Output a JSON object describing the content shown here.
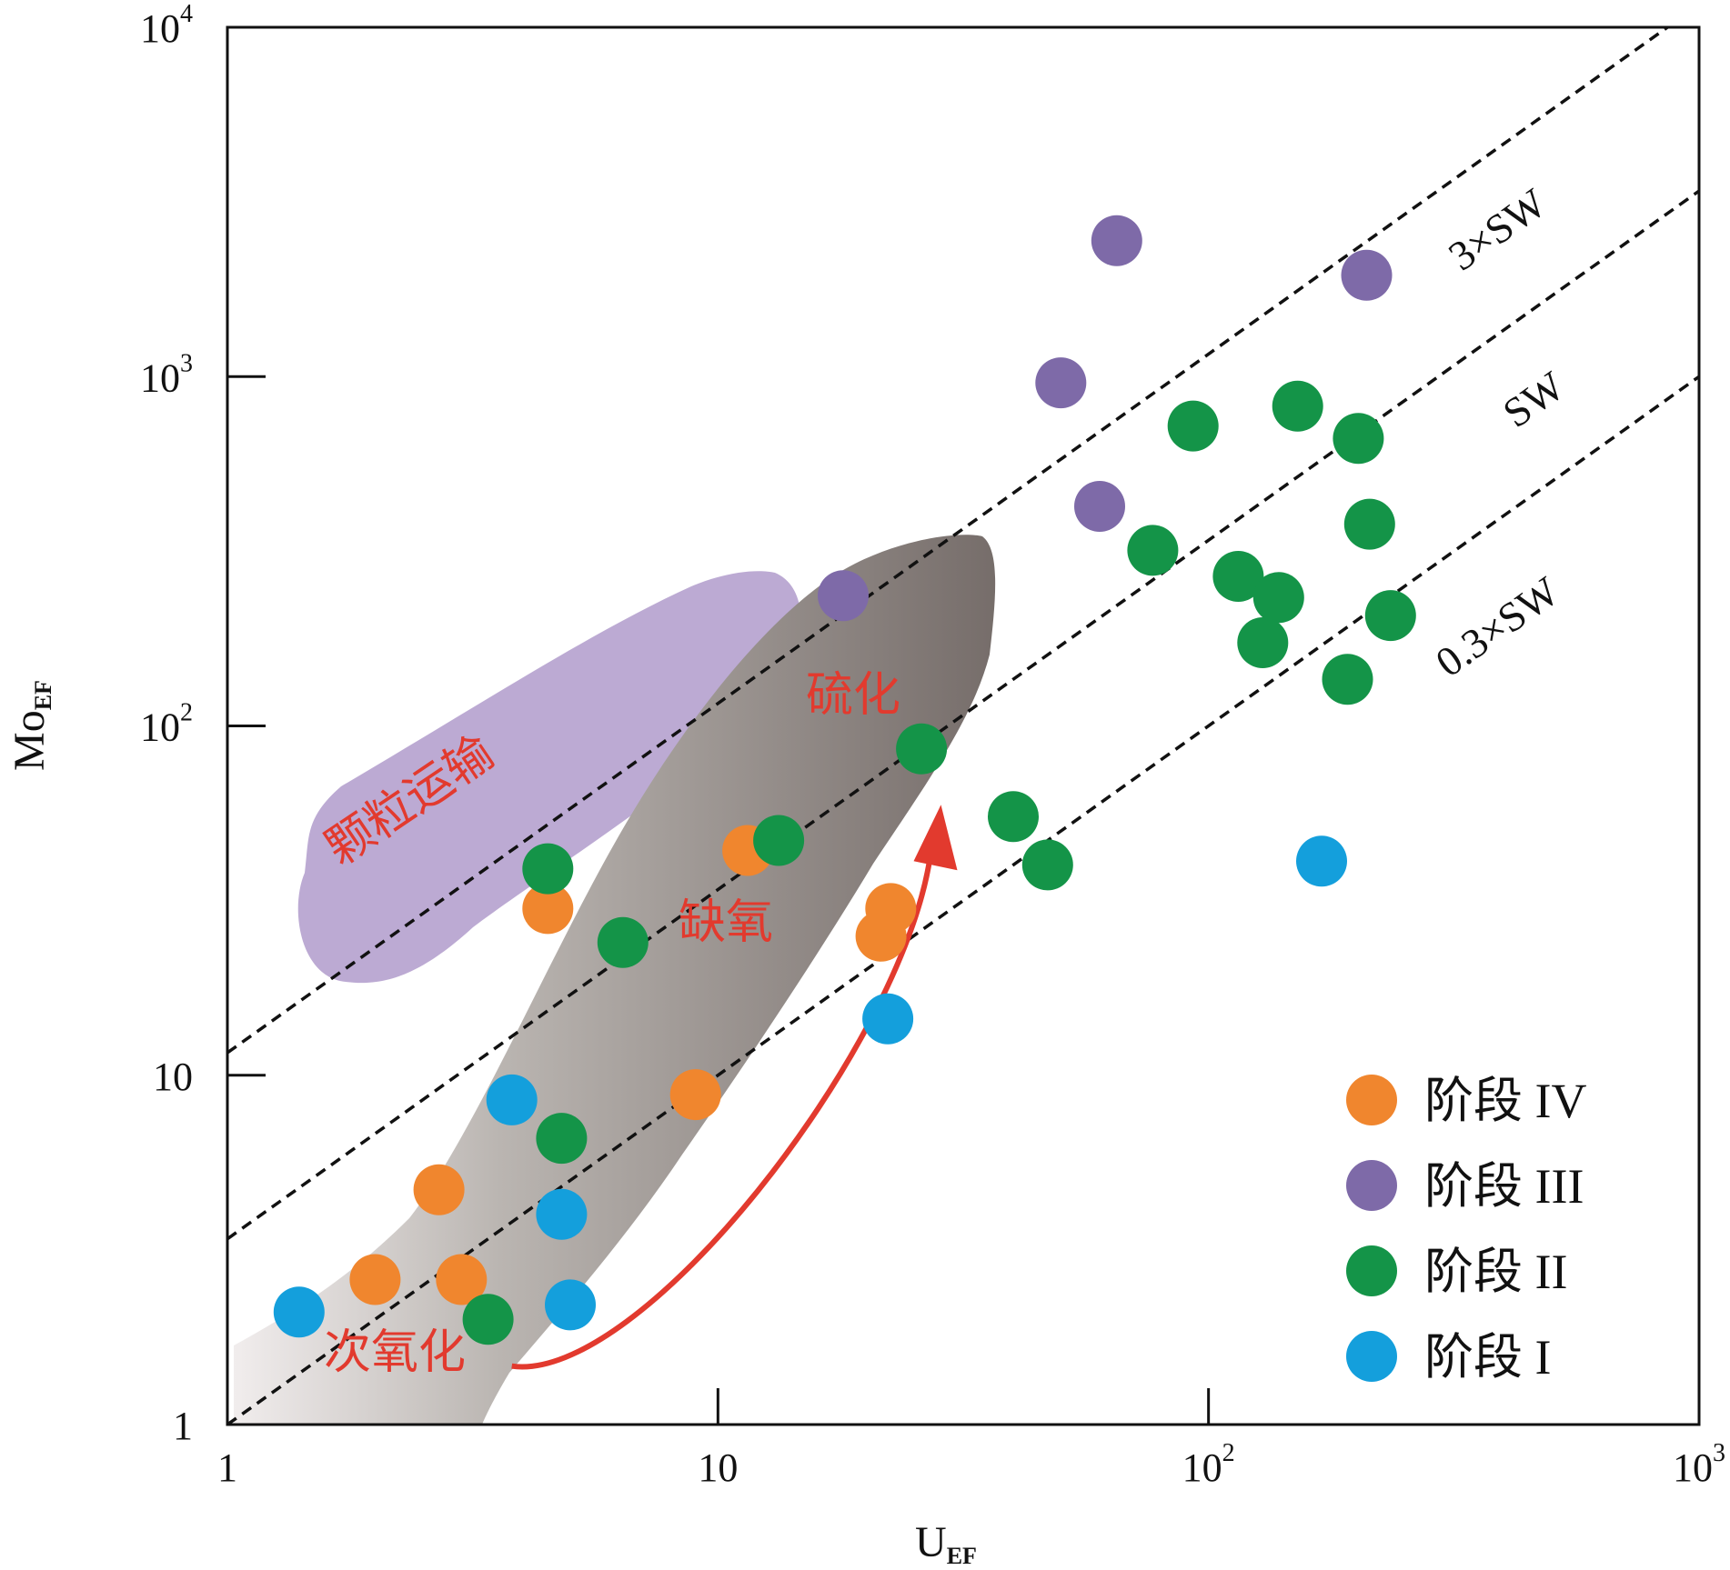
{
  "chart_data": {
    "type": "scatter",
    "x_scale": "log",
    "y_scale": "log",
    "xlim": [
      1,
      1000
    ],
    "ylim": [
      1,
      10000
    ],
    "grid": false,
    "legend_placement": "bottom-right",
    "xlabel": {
      "main": "U",
      "sub": "EF"
    },
    "ylabel": {
      "main": "Mo",
      "sub": "EF"
    },
    "x_ticks": [
      {
        "value": 1,
        "base": "1",
        "exp": ""
      },
      {
        "value": 10,
        "base": "10",
        "exp": ""
      },
      {
        "value": 100,
        "base": "10",
        "exp": "2"
      },
      {
        "value": 1000,
        "base": "10",
        "exp": "3"
      }
    ],
    "y_ticks": [
      {
        "value": 1,
        "base": "1",
        "exp": ""
      },
      {
        "value": 10,
        "base": "10",
        "exp": ""
      },
      {
        "value": 100,
        "base": "10",
        "exp": "2"
      },
      {
        "value": 1000,
        "base": "10",
        "exp": "3"
      },
      {
        "value": 10000,
        "base": "10",
        "exp": "4"
      }
    ],
    "reference_lines": [
      {
        "label": "3×SW",
        "mo_u_ratio": 11.6
      },
      {
        "label": "SW",
        "mo_u_ratio": 3.4
      },
      {
        "label": "0.3×SW",
        "mo_u_ratio": 1.0
      }
    ],
    "regions": [
      {
        "label": "颗粒运输",
        "color": "#7a55a8"
      },
      {
        "label": "缺氧",
        "color": "#8c7f78"
      },
      {
        "label": "硫化",
        "color": "#8c7f78"
      },
      {
        "label": "次氧化",
        "color": "#8c7f78"
      }
    ],
    "trend_arrow": {
      "color": "#e23a2e",
      "from": [
        3.8,
        1.47
      ],
      "to": [
        28,
        56
      ]
    },
    "series": [
      {
        "name": "阶段 IV",
        "color": "#f0862e",
        "points": [
          [
            2.0,
            2.6
          ],
          [
            2.7,
            4.7
          ],
          [
            3.0,
            2.6
          ],
          [
            4.5,
            30
          ],
          [
            9.0,
            8.8
          ],
          [
            11.5,
            44
          ],
          [
            21.5,
            25
          ],
          [
            22.5,
            30
          ]
        ]
      },
      {
        "name": "阶段 III",
        "color": "#7e6aa8",
        "points": [
          [
            18.0,
            236
          ],
          [
            50,
            960
          ],
          [
            60,
            425
          ],
          [
            65,
            2450
          ],
          [
            210,
            1950
          ]
        ]
      },
      {
        "name": "阶段 II",
        "color": "#149448",
        "points": [
          [
            3.4,
            2.0
          ],
          [
            4.5,
            39
          ],
          [
            4.8,
            6.6
          ],
          [
            6.4,
            24
          ],
          [
            13.3,
            47
          ],
          [
            26,
            86
          ],
          [
            40,
            55
          ],
          [
            47,
            40
          ],
          [
            77,
            318
          ],
          [
            93,
            722
          ],
          [
            115,
            268
          ],
          [
            129,
            173
          ],
          [
            139,
            233
          ],
          [
            152,
            823
          ],
          [
            192,
            136
          ],
          [
            202,
            665
          ],
          [
            213,
            378
          ],
          [
            235,
            207
          ]
        ]
      },
      {
        "name": "阶段 I",
        "color": "#149fdc",
        "points": [
          [
            1.4,
            2.1
          ],
          [
            3.8,
            8.5
          ],
          [
            4.8,
            4.0
          ],
          [
            5.0,
            2.2
          ],
          [
            22.2,
            14.5
          ],
          [
            170,
            41
          ]
        ]
      }
    ]
  }
}
